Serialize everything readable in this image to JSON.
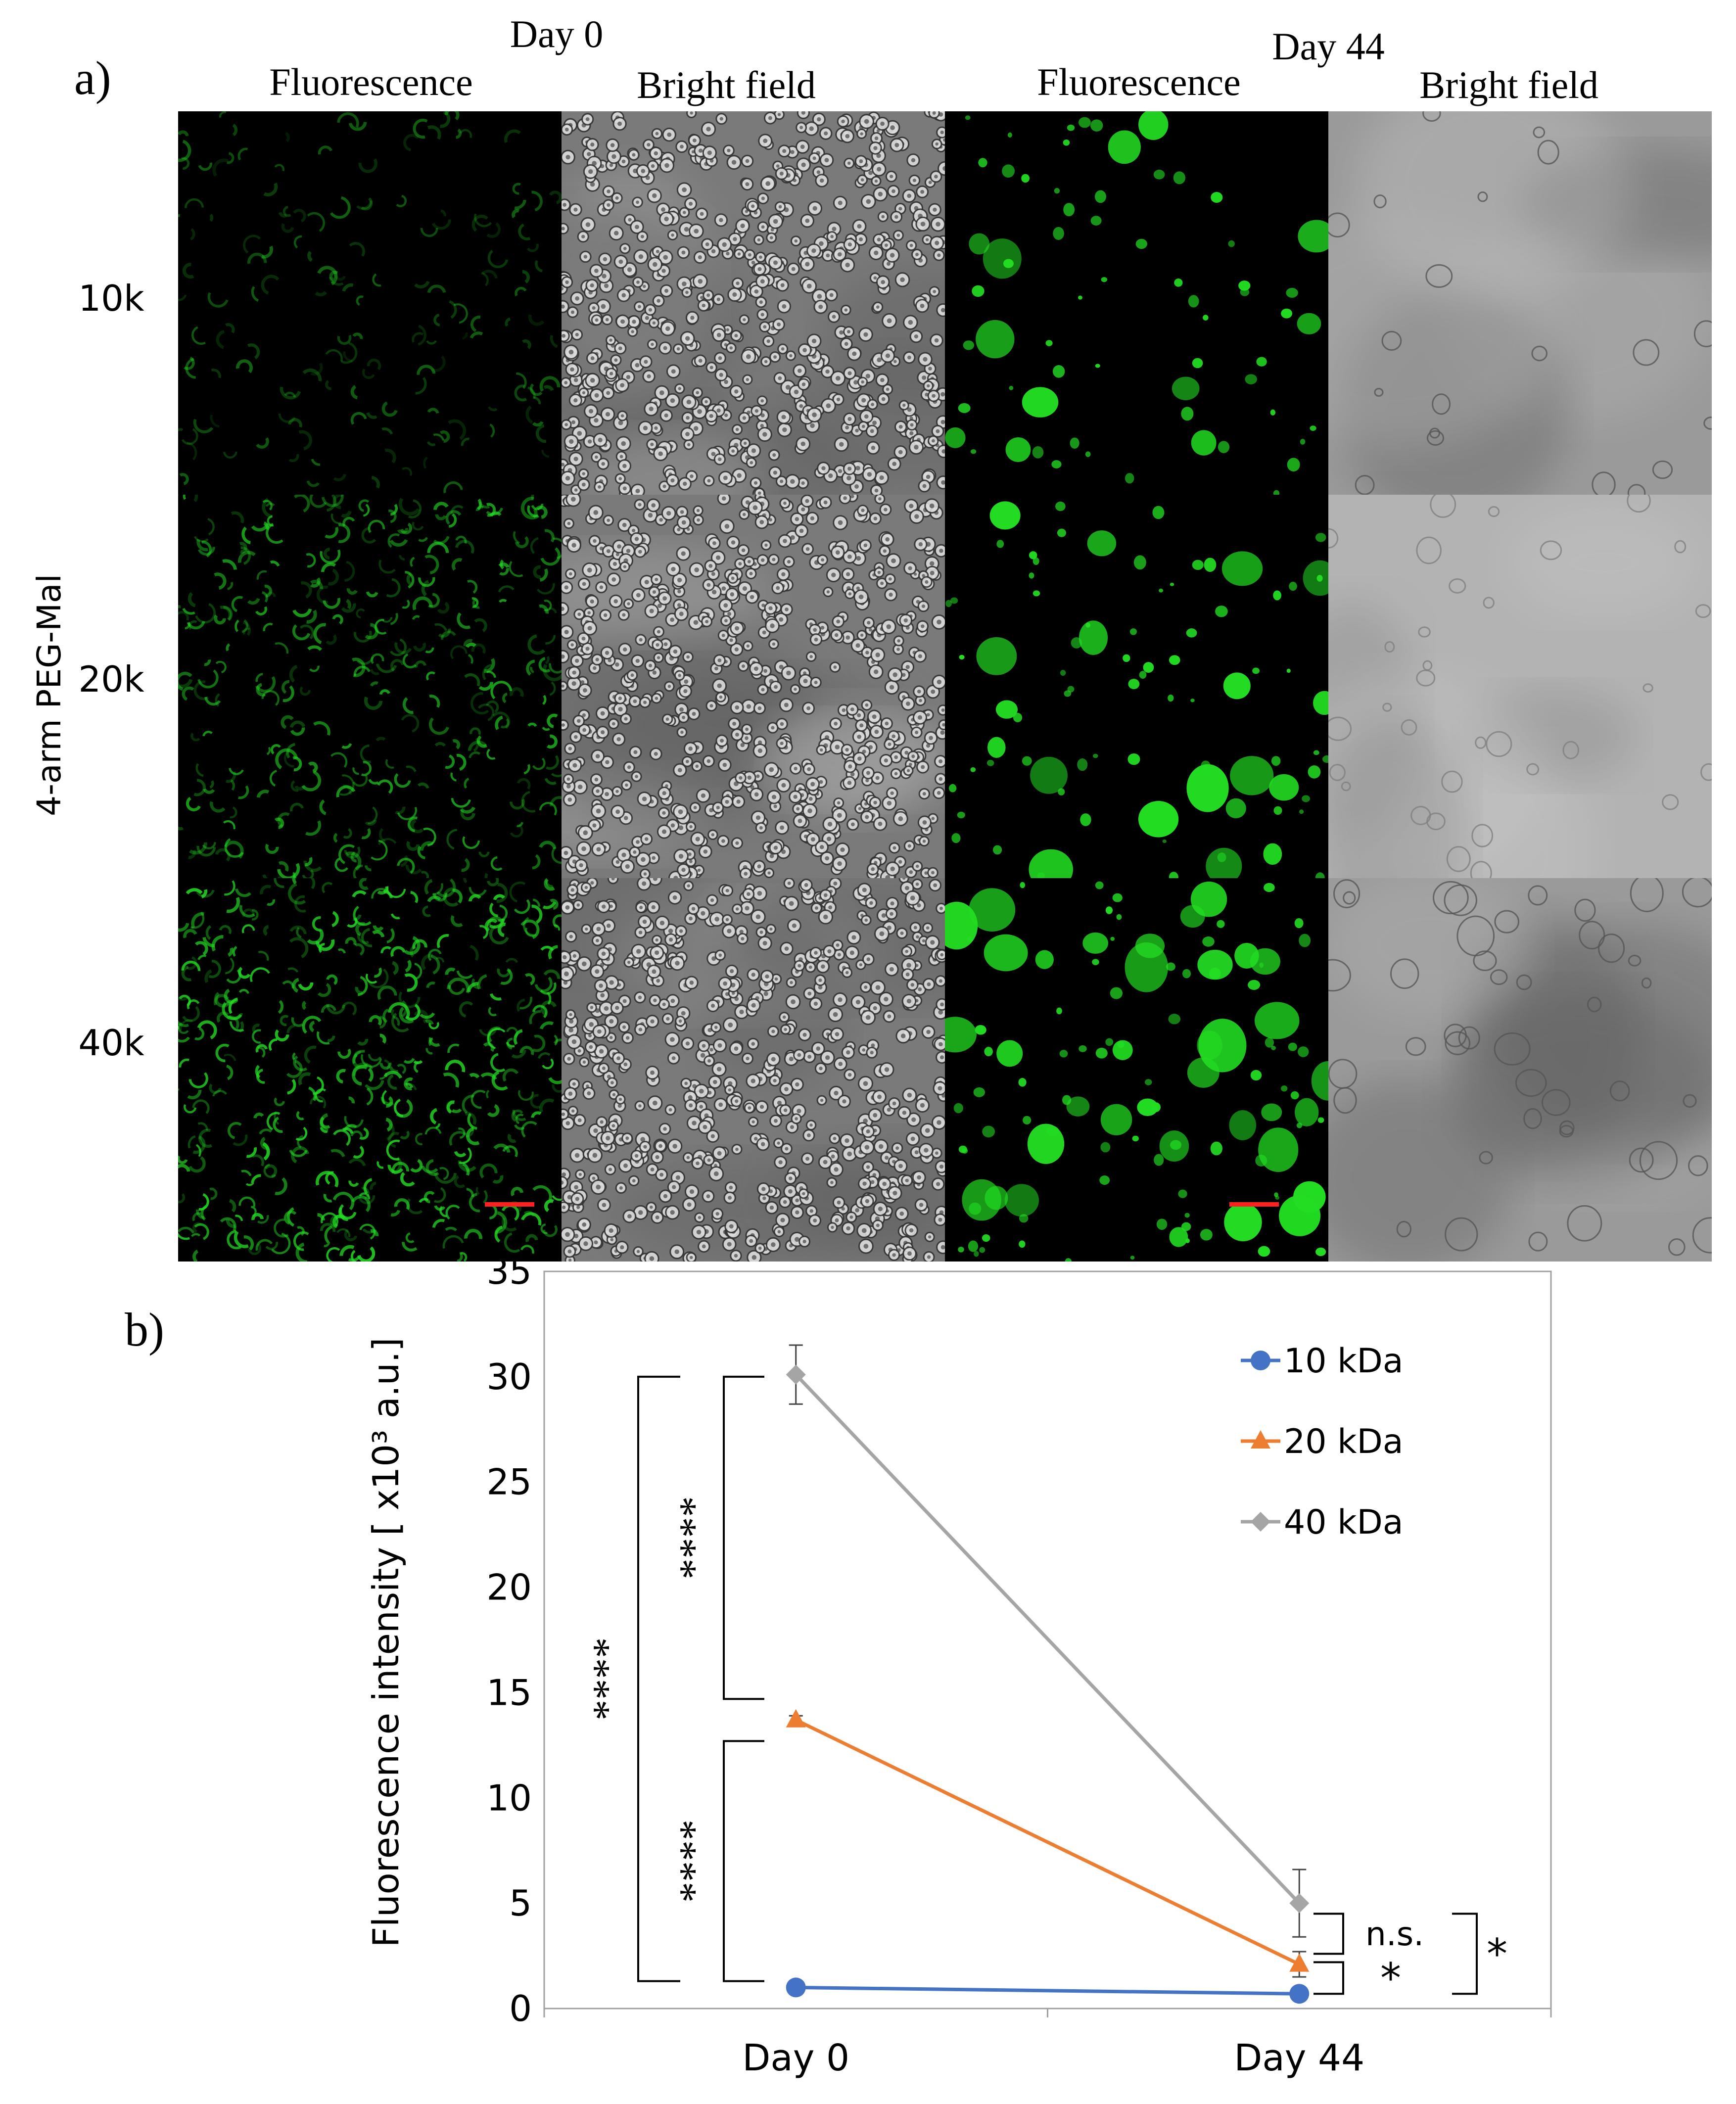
{
  "panel_a": {
    "label": "a)",
    "groups": [
      {
        "title": "Day 0",
        "columns": [
          "Fluorescence",
          "Bright field"
        ]
      },
      {
        "title": "Day 44",
        "columns": [
          "Fluorescence",
          "Bright field"
        ]
      }
    ],
    "row_axis_label": "4-arm PEG-Mal",
    "rows": [
      "10k",
      "20k",
      "40k"
    ],
    "colors": {
      "fluorescence": "#22dd22",
      "background_dark": "#000000",
      "bright_field_day0": "#7a7a7a",
      "bright_field_day44": "#9a9a9a",
      "scale_bar": "#ff2020"
    },
    "fluorescence_density": {
      "day0": [
        0.15,
        0.55,
        0.8
      ],
      "day44": [
        0.2,
        0.35,
        0.6
      ]
    }
  },
  "panel_b": {
    "label": "b)",
    "significance": {
      "day0_10_vs_40": "****",
      "day0_20_vs_40": "****",
      "day0_10_vs_20": "****",
      "day44_20_vs_40": "n.s.",
      "day44_10_vs_20": "*",
      "day44_10_vs_40": "*"
    }
  },
  "chart_data": {
    "type": "line",
    "categories": [
      "Day 0",
      "Day 44"
    ],
    "ylabel": "Fluorescence intensity [ x10³ a.u.]",
    "xlabel": "",
    "ylim": [
      0,
      35
    ],
    "yticks": [
      0,
      5,
      10,
      15,
      20,
      25,
      30,
      35
    ],
    "grid": false,
    "legend": "top-right",
    "series": [
      {
        "name": "10 kDa",
        "values": [
          1.0,
          0.7
        ],
        "errors": [
          0.1,
          0.1
        ],
        "color": "#4472c4",
        "marker": "circle"
      },
      {
        "name": "20 kDa",
        "values": [
          13.7,
          2.1
        ],
        "errors": [
          0.2,
          0.6
        ],
        "color": "#ed7d31",
        "marker": "triangle"
      },
      {
        "name": "40 kDa",
        "values": [
          30.1,
          5.0
        ],
        "errors": [
          1.4,
          1.6
        ],
        "color": "#a5a5a5",
        "marker": "diamond"
      }
    ]
  }
}
